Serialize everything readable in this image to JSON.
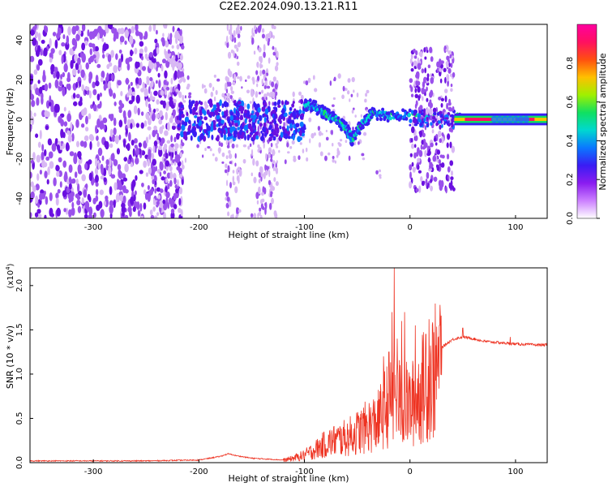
{
  "page_title": "C2E2.2024.090.13.21.R11",
  "colors": {
    "snr_line": "#ee3322",
    "scatter_light": "#d8b8f4",
    "scatter_mid": "#9a50ec",
    "scatter_dark": "#6a10e0",
    "colormap": [
      "#ffffff",
      "#cc80ff",
      "#8a1cf0",
      "#3a1cf4",
      "#0a78ff",
      "#00d8d0",
      "#10e060",
      "#a0f000",
      "#ffc000",
      "#ff5010",
      "#ff1060",
      "#ff00a0"
    ]
  },
  "chart_data": [
    {
      "type": "heatmap",
      "title": "",
      "xlabel": "Height of straight line (km)",
      "ylabel": "Frequency (Hz)",
      "xlim": [
        -360,
        130
      ],
      "ylim": [
        -50,
        48
      ],
      "x_ticks": [
        -300,
        -200,
        -100,
        0,
        100
      ],
      "y_ticks": [
        -40,
        -20,
        0,
        20,
        40
      ],
      "grid": false,
      "colorbar": {
        "label": "Normalized spectral amplitude",
        "range": [
          0,
          1
        ],
        "ticks": [
          "0.0",
          "0.2",
          "0.4",
          "0.6",
          "0.8"
        ],
        "tick_values": [
          0,
          0.2,
          0.4,
          0.6,
          0.8
        ],
        "placement": "right"
      },
      "regions": [
        {
          "description": "broadband speckle",
          "x_range": [
            -360,
            -215
          ],
          "f_range": [
            -50,
            48
          ],
          "amplitude": 0.15
        },
        {
          "description": "speckle columns",
          "x_range": [
            -175,
            -125
          ],
          "f_range": [
            -50,
            48
          ],
          "amplitude": 0.1
        },
        {
          "description": "wide band near 0 Hz",
          "x_range": [
            -220,
            -40
          ],
          "f_range": [
            -12,
            10
          ],
          "amplitude": 0.35
        },
        {
          "description": "burst",
          "x_range": [
            0,
            42
          ],
          "f_range": [
            -36,
            36
          ],
          "amplitude": 0.25
        },
        {
          "description": "narrow line at 0 Hz",
          "x_range": [
            42,
            130
          ],
          "f_range": [
            -2,
            2
          ],
          "amplitude": 0.9
        }
      ],
      "ridge": [
        [
          -100,
          8
        ],
        [
          -90,
          6
        ],
        [
          -80,
          3
        ],
        [
          -70,
          0
        ],
        [
          -60,
          -5
        ],
        [
          -55,
          -10
        ],
        [
          -45,
          -2
        ],
        [
          -35,
          3
        ],
        [
          -20,
          2
        ],
        [
          0,
          2
        ],
        [
          50,
          1
        ],
        [
          100,
          1
        ],
        [
          130,
          1
        ]
      ]
    },
    {
      "type": "line",
      "title": "",
      "xlabel": "Height of straight line (km)",
      "ylabel": "SNR (10 * v/v)",
      "y_multiplier": "(x10^4)",
      "y_multiplier_base": "(x10",
      "y_multiplier_exp": "4",
      "y_multiplier_close": ")",
      "xlim": [
        -360,
        130
      ],
      "ylim": [
        0,
        2.2
      ],
      "x_ticks": [
        -300,
        -200,
        -100,
        0,
        100
      ],
      "y_ticks": [
        "0.0",
        "0.5",
        "1.0",
        "1.5",
        "2.0"
      ],
      "y_tick_values": [
        0,
        0.5,
        1.0,
        1.5,
        2.0
      ],
      "grid": false,
      "series": [
        {
          "x": [
            -360,
            -300,
            -250,
            -200,
            -180,
            -172,
            -165,
            -150,
            -120,
            -110,
            -100,
            -90,
            -80,
            -70,
            -60,
            -50,
            -40,
            -30,
            -25,
            -20,
            -15,
            -10,
            -5,
            0,
            5,
            10,
            15,
            20,
            30,
            40,
            50,
            60,
            70,
            80,
            100,
            120,
            130
          ],
          "y": [
            0.02,
            0.02,
            0.02,
            0.03,
            0.07,
            0.1,
            0.08,
            0.05,
            0.03,
            0.06,
            0.1,
            0.17,
            0.25,
            0.3,
            0.33,
            0.4,
            0.48,
            0.55,
            0.7,
            0.8,
            0.85,
            0.8,
            0.78,
            0.75,
            0.82,
            0.95,
            1.05,
            1.15,
            1.3,
            1.39,
            1.42,
            1.4,
            1.37,
            1.36,
            1.34,
            1.33,
            1.33
          ],
          "spikes": [
            [
              -15,
              2.2
            ],
            [
              -17,
              1.7
            ],
            [
              -20,
              1.25
            ],
            [
              -25,
              1.2
            ],
            [
              -12,
              1.4
            ],
            [
              -8,
              1.6
            ],
            [
              -5,
              1.7
            ],
            [
              2,
              0.95
            ],
            [
              5,
              1.55
            ],
            [
              15,
              1.45
            ],
            [
              18,
              1.62
            ],
            [
              28,
              1.55
            ],
            [
              50,
              1.52
            ],
            [
              95,
              1.42
            ]
          ]
        }
      ]
    }
  ]
}
